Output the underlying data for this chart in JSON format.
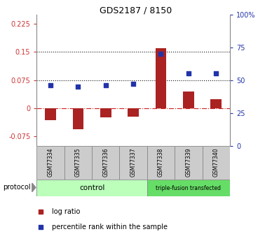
{
  "title": "GDS2187 / 8150",
  "samples": [
    "GSM77334",
    "GSM77335",
    "GSM77336",
    "GSM77337",
    "GSM77338",
    "GSM77339",
    "GSM77340"
  ],
  "log_ratio": [
    -0.032,
    -0.055,
    -0.025,
    -0.022,
    0.16,
    0.045,
    0.025
  ],
  "percentile_rank": [
    46,
    45,
    46,
    47,
    70,
    55,
    55
  ],
  "ylim_left": [
    -0.1,
    0.25
  ],
  "ylim_right": [
    0,
    100
  ],
  "yticks_left": [
    -0.075,
    0,
    0.075,
    0.15,
    0.225
  ],
  "yticks_right": [
    0,
    25,
    50,
    75,
    100
  ],
  "ytick_labels_left": [
    "-0.075",
    "0",
    "0.075",
    "0.15",
    "0.225"
  ],
  "ytick_labels_right": [
    "0",
    "25",
    "50",
    "75",
    "100%"
  ],
  "hlines": [
    0.075,
    0.15
  ],
  "bar_color": "#aa2222",
  "dot_color": "#2233aa",
  "zero_line_color": "#cc2222",
  "hline_color": "#111111",
  "plot_bg": "#ffffff",
  "n_ctrl": 4,
  "n_trans": 3,
  "control_label": "control",
  "transfected_label": "triple-fusion transfected",
  "protocol_label": "protocol",
  "legend_log_ratio": "log ratio",
  "legend_percentile": "percentile rank within the sample",
  "control_color": "#bbffbb",
  "transfected_color": "#66dd66",
  "sample_box_color": "#cccccc"
}
